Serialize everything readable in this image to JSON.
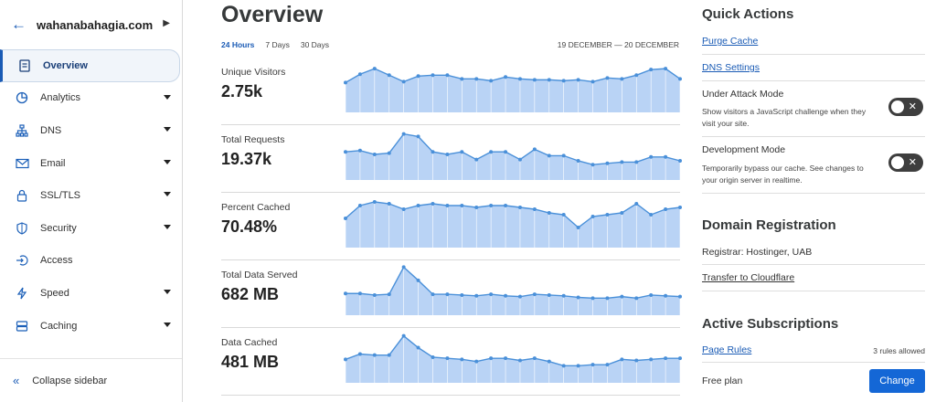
{
  "sidebar": {
    "domain": "wahanabahagia.com",
    "items": [
      {
        "label": "Overview",
        "icon": "document-icon",
        "active": true
      },
      {
        "label": "Analytics",
        "icon": "pie-chart-icon"
      },
      {
        "label": "DNS",
        "icon": "network-icon"
      },
      {
        "label": "Email",
        "icon": "envelope-icon"
      },
      {
        "label": "SSL/TLS",
        "icon": "lock-icon"
      },
      {
        "label": "Security",
        "icon": "shield-icon"
      },
      {
        "label": "Access",
        "icon": "access-arrow-icon"
      },
      {
        "label": "Speed",
        "icon": "lightning-icon"
      },
      {
        "label": "Caching",
        "icon": "server-icon"
      }
    ],
    "collapse_label": "Collapse sidebar"
  },
  "main": {
    "title": "Overview",
    "ranges": [
      "24 Hours",
      "7 Days",
      "30 Days"
    ],
    "selected_range": "24 Hours",
    "date_range": "19 DECEMBER — 20 DECEMBER",
    "metrics": [
      {
        "label": "Unique Visitors",
        "value": "2.75k"
      },
      {
        "label": "Total Requests",
        "value": "19.37k"
      },
      {
        "label": "Percent Cached",
        "value": "70.48%"
      },
      {
        "label": "Total Data Served",
        "value": "682 MB"
      },
      {
        "label": "Data Cached",
        "value": "481 MB"
      }
    ]
  },
  "chart_data": [
    {
      "type": "area",
      "name": "Unique Visitors",
      "values": [
        32,
        41,
        47,
        40,
        33,
        39,
        40,
        40,
        36,
        36,
        34,
        38,
        36,
        35,
        35,
        34,
        35,
        33,
        37,
        36,
        40,
        46,
        47,
        36
      ]
    },
    {
      "type": "area",
      "name": "Total Requests",
      "values": [
        810,
        815,
        800,
        805,
        880,
        870,
        810,
        800,
        810,
        780,
        810,
        810,
        780,
        820,
        795,
        795,
        775,
        760,
        765,
        770,
        770,
        790,
        790,
        775
      ]
    },
    {
      "type": "area",
      "name": "Percent Cached",
      "values": [
        66,
        73,
        75,
        74,
        71,
        73,
        74,
        73,
        73,
        72,
        73,
        73,
        72,
        71,
        69,
        68,
        61,
        67,
        68,
        69,
        74,
        68,
        71,
        72
      ]
    },
    {
      "type": "area",
      "name": "Total Data Served",
      "values": [
        28,
        28,
        26,
        27,
        62,
        45,
        27,
        27,
        26,
        25,
        27,
        25,
        24,
        27,
        26,
        25,
        23,
        22,
        22,
        24,
        22,
        26,
        25,
        24
      ]
    },
    {
      "type": "area",
      "name": "Data Cached",
      "values": [
        22,
        27,
        26,
        26,
        44,
        33,
        24,
        23,
        22,
        20,
        23,
        23,
        21,
        23,
        20,
        16,
        16,
        17,
        17,
        22,
        21,
        22,
        23,
        23
      ]
    }
  ],
  "quick_actions": {
    "title": "Quick Actions",
    "purge_cache": "Purge Cache",
    "dns_settings": "DNS Settings",
    "under_attack": {
      "title": "Under Attack Mode",
      "desc": "Show visitors a JavaScript challenge when they visit your site.",
      "enabled": false
    },
    "dev_mode": {
      "title": "Development Mode",
      "desc": "Temporarily bypass our cache. See changes to your origin server in realtime.",
      "enabled": false
    }
  },
  "domain_registration": {
    "title": "Domain Registration",
    "registrar": "Registrar: Hostinger, UAB",
    "transfer": "Transfer to Cloudflare"
  },
  "subscriptions": {
    "title": "Active Subscriptions",
    "page_rules": "Page Rules",
    "rules_allowed": "3 rules allowed",
    "plan": "Free plan",
    "change": "Change"
  },
  "colors": {
    "accent": "#1a5bb5",
    "chart_line": "#4a90d9",
    "chart_fill": "#b9d3f5",
    "button": "#1467d6"
  }
}
